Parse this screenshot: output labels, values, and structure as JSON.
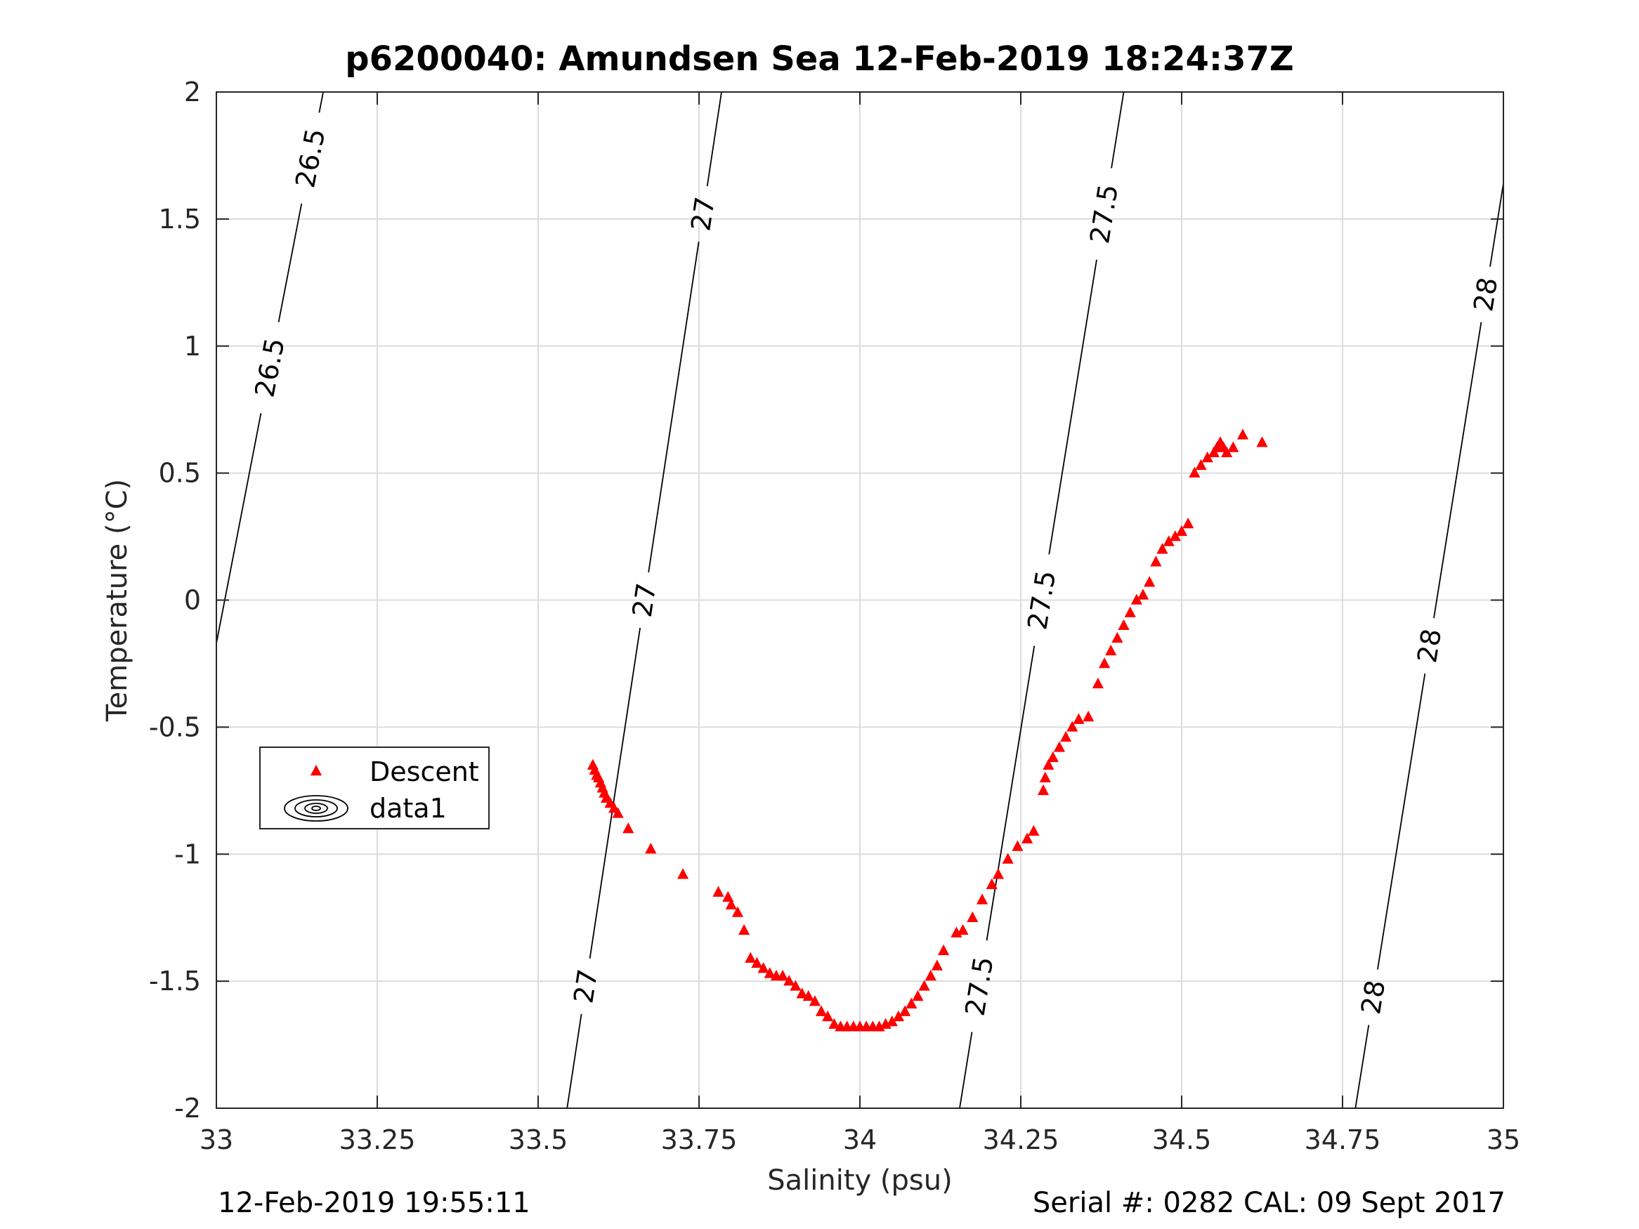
{
  "chart_data": {
    "type": "scatter",
    "title": "p6200040: Amundsen Sea 12-Feb-2019 18:24:37Z",
    "xlabel": "Salinity (psu)",
    "ylabel": "Temperature (°C)",
    "xlim": [
      33,
      35
    ],
    "ylim": [
      -2,
      2
    ],
    "xticks": [
      "33",
      "33.25",
      "33.5",
      "33.75",
      "34",
      "34.25",
      "34.5",
      "34.75",
      "35"
    ],
    "yticks": [
      "-2",
      "-1.5",
      "-1",
      "-0.5",
      "0",
      "0.5",
      "1",
      "1.5",
      "2"
    ],
    "grid": true,
    "legend": {
      "placement": "lower-left",
      "entries": [
        "Descent",
        "data1"
      ]
    },
    "series": [
      {
        "name": "Descent",
        "marker": "triangle",
        "color": "#ff0000",
        "points": [
          [
            33.585,
            -0.65
          ],
          [
            33.588,
            -0.67
          ],
          [
            33.591,
            -0.69
          ],
          [
            33.594,
            -0.7
          ],
          [
            33.597,
            -0.72
          ],
          [
            33.6,
            -0.74
          ],
          [
            33.603,
            -0.76
          ],
          [
            33.606,
            -0.78
          ],
          [
            33.612,
            -0.8
          ],
          [
            33.618,
            -0.82
          ],
          [
            33.624,
            -0.84
          ],
          [
            33.64,
            -0.9
          ],
          [
            33.675,
            -0.98
          ],
          [
            33.725,
            -1.08
          ],
          [
            33.78,
            -1.15
          ],
          [
            33.795,
            -1.17
          ],
          [
            33.8,
            -1.2
          ],
          [
            33.81,
            -1.23
          ],
          [
            33.82,
            -1.3
          ],
          [
            33.83,
            -1.41
          ],
          [
            33.84,
            -1.43
          ],
          [
            33.85,
            -1.45
          ],
          [
            33.86,
            -1.47
          ],
          [
            33.87,
            -1.48
          ],
          [
            33.88,
            -1.48
          ],
          [
            33.89,
            -1.5
          ],
          [
            33.9,
            -1.52
          ],
          [
            33.91,
            -1.55
          ],
          [
            33.92,
            -1.56
          ],
          [
            33.93,
            -1.58
          ],
          [
            33.94,
            -1.62
          ],
          [
            33.95,
            -1.64
          ],
          [
            33.96,
            -1.67
          ],
          [
            33.97,
            -1.68
          ],
          [
            33.98,
            -1.68
          ],
          [
            33.99,
            -1.68
          ],
          [
            34.0,
            -1.68
          ],
          [
            34.01,
            -1.68
          ],
          [
            34.02,
            -1.68
          ],
          [
            34.03,
            -1.68
          ],
          [
            34.04,
            -1.67
          ],
          [
            34.05,
            -1.66
          ],
          [
            34.06,
            -1.64
          ],
          [
            34.07,
            -1.62
          ],
          [
            34.08,
            -1.59
          ],
          [
            34.09,
            -1.56
          ],
          [
            34.1,
            -1.52
          ],
          [
            34.11,
            -1.48
          ],
          [
            34.12,
            -1.44
          ],
          [
            34.13,
            -1.38
          ],
          [
            34.15,
            -1.31
          ],
          [
            34.16,
            -1.3
          ],
          [
            34.175,
            -1.25
          ],
          [
            34.19,
            -1.18
          ],
          [
            34.205,
            -1.12
          ],
          [
            34.215,
            -1.08
          ],
          [
            34.23,
            -1.02
          ],
          [
            34.245,
            -0.97
          ],
          [
            34.26,
            -0.94
          ],
          [
            34.27,
            -0.91
          ],
          [
            34.285,
            -0.75
          ],
          [
            34.288,
            -0.7
          ],
          [
            34.293,
            -0.65
          ],
          [
            34.3,
            -0.62
          ],
          [
            34.31,
            -0.58
          ],
          [
            34.32,
            -0.54
          ],
          [
            34.33,
            -0.5
          ],
          [
            34.34,
            -0.47
          ],
          [
            34.355,
            -0.46
          ],
          [
            34.37,
            -0.33
          ],
          [
            34.38,
            -0.25
          ],
          [
            34.39,
            -0.2
          ],
          [
            34.4,
            -0.15
          ],
          [
            34.41,
            -0.1
          ],
          [
            34.42,
            -0.05
          ],
          [
            34.43,
            0.0
          ],
          [
            34.44,
            0.02
          ],
          [
            34.45,
            0.07
          ],
          [
            34.46,
            0.15
          ],
          [
            34.47,
            0.2
          ],
          [
            34.48,
            0.23
          ],
          [
            34.49,
            0.25
          ],
          [
            34.5,
            0.27
          ],
          [
            34.51,
            0.3
          ],
          [
            34.52,
            0.5
          ],
          [
            34.53,
            0.53
          ],
          [
            34.54,
            0.56
          ],
          [
            34.55,
            0.58
          ],
          [
            34.555,
            0.6
          ],
          [
            34.56,
            0.62
          ],
          [
            34.565,
            0.6
          ],
          [
            34.57,
            0.58
          ],
          [
            34.58,
            0.6
          ],
          [
            34.595,
            0.65
          ],
          [
            34.625,
            0.62
          ]
        ]
      },
      {
        "name": "data1",
        "type": "contour",
        "color": "#000000",
        "levels": [
          {
            "label": "26.5",
            "points": [
              [
                33.0,
                -0.17
              ],
              [
                33.166,
                2.0
              ]
            ]
          },
          {
            "label": "27",
            "points": [
              [
                33.545,
                -2.0
              ],
              [
                33.785,
                2.0
              ]
            ]
          },
          {
            "label": "27.5",
            "points": [
              [
                34.155,
                -2.0
              ],
              [
                34.41,
                2.0
              ]
            ]
          },
          {
            "label": "28",
            "points": [
              [
                34.77,
                -2.0
              ],
              [
                35.0,
                1.64
              ]
            ]
          }
        ]
      }
    ]
  },
  "footer": {
    "left": "12-Feb-2019 19:55:11",
    "right": "Serial #: 0282  CAL: 09 Sept 2017"
  }
}
